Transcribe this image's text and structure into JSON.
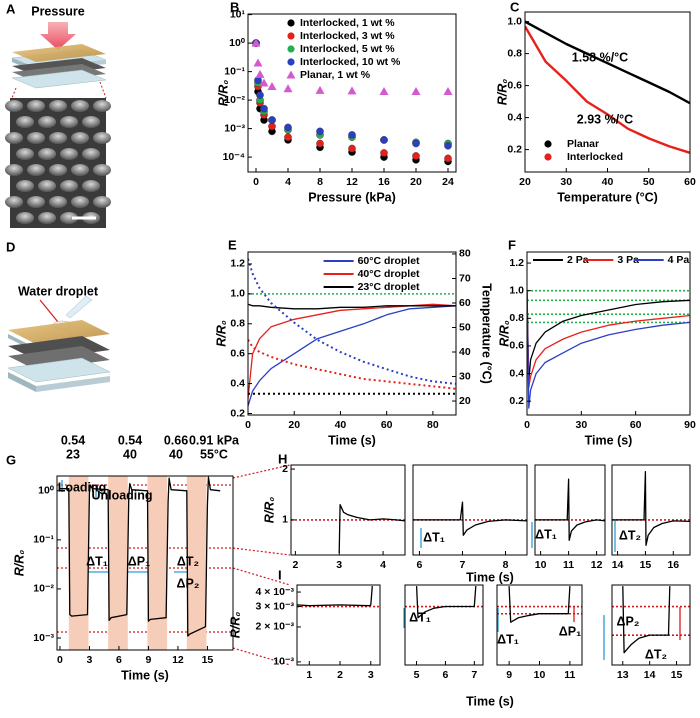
{
  "panels": {
    "A": {
      "label": "A",
      "text": "Pressure"
    },
    "D": {
      "label": "D",
      "text": "Water droplet"
    }
  },
  "chart_data": [
    {
      "panel": "B",
      "type": "scatter",
      "ylog": true,
      "xlabel": "Pressure (kPa)",
      "ylabel": "R/R₀",
      "xlim": [
        -1,
        25
      ],
      "xticks": [
        0,
        4,
        8,
        12,
        16,
        20,
        24
      ],
      "ylim": [
        3e-05,
        10.5
      ],
      "yticks": [
        {
          "value": 0.0001,
          "label": "10⁻⁴"
        },
        {
          "value": 0.001,
          "label": "10⁻³"
        },
        {
          "value": 0.01,
          "label": "10⁻²"
        },
        {
          "value": 0.1,
          "label": "10⁻¹"
        },
        {
          "value": 1,
          "label": "10⁰"
        },
        {
          "value": 10,
          "label": "10¹"
        }
      ],
      "legend": "upper right",
      "x": [
        0,
        0.25,
        0.5,
        1,
        2,
        4,
        8,
        12,
        16,
        20,
        24
      ],
      "series": [
        {
          "name": "Interlocked, 1 wt %",
          "color": "#000000",
          "marker": "circle",
          "values": [
            1,
            0.02,
            0.005,
            0.002,
            0.0008,
            0.0004,
            0.00022,
            0.00015,
            0.0001,
            8e-05,
            7e-05
          ]
        },
        {
          "name": "Interlocked, 3 wt %",
          "color": "#e8201c",
          "marker": "circle",
          "values": [
            1,
            0.03,
            0.008,
            0.003,
            0.0012,
            0.0005,
            0.0003,
            0.0002,
            0.00014,
            0.00011,
            9e-05
          ]
        },
        {
          "name": "Interlocked, 5 wt %",
          "color": "#22b14c",
          "marker": "circle",
          "values": [
            1,
            0.04,
            0.01,
            0.004,
            0.002,
            0.0009,
            0.0006,
            0.0005,
            0.0004,
            0.00033,
            0.0003
          ]
        },
        {
          "name": "Interlocked, 10 wt %",
          "color": "#2b3fc4",
          "marker": "circle",
          "values": [
            1,
            0.05,
            0.015,
            0.005,
            0.002,
            0.0011,
            0.0008,
            0.0006,
            0.0004,
            0.0003,
            0.00025
          ]
        },
        {
          "name": "Planar, 1 wt %",
          "color": "#d45ad0",
          "marker": "triangle",
          "values": [
            1,
            0.2,
            0.08,
            0.04,
            0.03,
            0.025,
            0.022,
            0.021,
            0.02,
            0.02,
            0.02
          ]
        }
      ]
    },
    {
      "panel": "C",
      "type": "line",
      "xlabel": "Temperature (°C)",
      "ylabel": "R/R₀",
      "xlim": [
        20,
        60
      ],
      "xticks": [
        20,
        30,
        40,
        50,
        60
      ],
      "ylim": [
        0.06,
        1.06
      ],
      "yticks": [
        0.2,
        0.4,
        0.6,
        0.8,
        {
          "value": 1,
          "label": "1.0"
        }
      ],
      "legend": "lower left",
      "x": [
        20,
        25,
        30,
        35,
        40,
        45,
        50,
        55,
        60
      ],
      "series": [
        {
          "name": "Planar",
          "color": "#000000",
          "marker": "circle",
          "values": [
            1.0,
            0.93,
            0.86,
            0.8,
            0.74,
            0.68,
            0.62,
            0.56,
            0.49
          ]
        },
        {
          "name": "Interlocked",
          "color": "#e8201c",
          "marker": "circle",
          "values": [
            0.97,
            0.75,
            0.63,
            0.5,
            0.42,
            0.33,
            0.27,
            0.22,
            0.18
          ]
        }
      ],
      "annotations": [
        {
          "text": "1.58 %/°C",
          "color": "#000000"
        },
        {
          "text": "2.93 %/°C",
          "color": "#e8201c"
        }
      ]
    },
    {
      "panel": "E",
      "type": "line",
      "xlabel": "Time (s)",
      "ylabel": "R/R₀",
      "y2label": "Temperature (°C)",
      "xlim": [
        0,
        90
      ],
      "xticks": [
        0,
        20,
        40,
        60,
        80
      ],
      "ylim": [
        0.19,
        1.28
      ],
      "yticks": [
        0.2,
        0.4,
        0.6,
        0.8,
        {
          "value": 1,
          "label": "1.0"
        },
        1.2
      ],
      "y2lim": [
        14.3,
        80.8
      ],
      "y2ticks": [
        20,
        30,
        40,
        50,
        60,
        70,
        80
      ],
      "legend": "upper right",
      "ref_lines": [
        1.0
      ],
      "ref_color": "#22b14c",
      "x": [
        0,
        2,
        5,
        10,
        20,
        30,
        40,
        50,
        60,
        70,
        80,
        90
      ],
      "series": [
        {
          "name": "60°C droplet",
          "color": "#2b3fc4",
          "values": [
            0.25,
            0.35,
            0.42,
            0.5,
            0.6,
            0.7,
            0.75,
            0.8,
            0.86,
            0.9,
            0.91,
            0.92
          ]
        },
        {
          "name": "40°C droplet",
          "color": "#e8201c",
          "values": [
            0.3,
            0.6,
            0.7,
            0.78,
            0.83,
            0.86,
            0.89,
            0.9,
            0.91,
            0.92,
            0.93,
            0.92
          ]
        },
        {
          "name": "23°C droplet",
          "color": "#000000",
          "values": [
            0.93,
            0.92,
            0.92,
            0.91,
            0.9,
            0.9,
            0.91,
            0.91,
            0.92,
            0.92,
            0.92,
            0.92
          ]
        },
        {
          "color": "#2b3fc4",
          "axis": "y2",
          "style": "dotted",
          "values": [
            78,
            72,
            66,
            60,
            52,
            45,
            40,
            36,
            33,
            30,
            28,
            27
          ]
        },
        {
          "color": "#e8201c",
          "axis": "y2",
          "style": "dotted",
          "values": [
            45,
            42,
            40,
            38,
            35,
            33,
            31,
            29,
            28,
            27,
            26,
            25
          ]
        },
        {
          "color": "#000000",
          "axis": "y2",
          "style": "dotted",
          "values": [
            23,
            23,
            23,
            23,
            23,
            23,
            23,
            23,
            23,
            23,
            23,
            23
          ]
        }
      ]
    },
    {
      "panel": "F",
      "type": "line",
      "xlabel": "Time (s)",
      "ylabel": "R/R₀",
      "xlim": [
        0,
        90
      ],
      "xticks": [
        0,
        30,
        60,
        90
      ],
      "ylim": [
        0.1,
        1.28
      ],
      "yticks": [
        0.2,
        0.4,
        0.6,
        0.8,
        {
          "value": 1,
          "label": "1.0"
        },
        1.2
      ],
      "legend": "top",
      "ref_lines": [
        1.0,
        0.93,
        0.83,
        0.77
      ],
      "ref_color": "#22b14c",
      "x": [
        0,
        1,
        2,
        5,
        10,
        20,
        30,
        45,
        60,
        75,
        90
      ],
      "series": [
        {
          "name": "2 Pa",
          "color": "#000000",
          "values": [
            1.0,
            0.35,
            0.5,
            0.62,
            0.7,
            0.78,
            0.82,
            0.86,
            0.9,
            0.92,
            0.93
          ]
        },
        {
          "name": "3 Pa",
          "color": "#e8201c",
          "values": [
            0.95,
            0.3,
            0.38,
            0.5,
            0.58,
            0.65,
            0.7,
            0.75,
            0.78,
            0.8,
            0.82
          ]
        },
        {
          "name": "4 Pa",
          "color": "#2b3fc4",
          "values": [
            1.0,
            0.15,
            0.28,
            0.4,
            0.48,
            0.55,
            0.62,
            0.68,
            0.72,
            0.75,
            0.77
          ]
        }
      ]
    },
    {
      "panel": "G",
      "type": "line",
      "ylog": true,
      "xlabel": "Time (s)",
      "ylabel": "R/R₀",
      "xlim": [
        -0.3,
        17.6
      ],
      "xticks": [
        0,
        3,
        6,
        9,
        12,
        15
      ],
      "ylim": [
        0.00057,
        2.0
      ],
      "yticks": [
        {
          "value": 0.001,
          "label": "10⁻³"
        },
        {
          "value": 0.01,
          "label": "10⁻²"
        },
        {
          "value": 0.1,
          "label": "10⁻¹"
        },
        {
          "value": 1,
          "label": "10⁰"
        }
      ],
      "shaded": [
        [
          0.9,
          2.9
        ],
        [
          4.9,
          6.9
        ],
        [
          8.9,
          10.9
        ],
        [
          12.9,
          14.9
        ]
      ],
      "shade_color": "#f6cdb8",
      "x": [
        0,
        0.9,
        1.0,
        1.2,
        2.8,
        3.0,
        3.1,
        3.3,
        4.9,
        5.0,
        5.2,
        6.8,
        7.0,
        7.1,
        7.3,
        8.9,
        9.0,
        9.2,
        10.8,
        11.0,
        11.1,
        11.3,
        12.9,
        13.0,
        13.2,
        14.8,
        15.0,
        15.1,
        15.3,
        16.3
      ],
      "series": [
        {
          "color": "#000000",
          "values": [
            1.1,
            1.1,
            0.003,
            0.0028,
            0.003,
            0.9,
            1.3,
            1.1,
            1.05,
            0.0023,
            0.0026,
            0.003,
            0.8,
            1.4,
            1.05,
            1.0,
            0.0022,
            0.0024,
            0.0026,
            0.6,
            1.8,
            1.05,
            1.0,
            0.0011,
            0.0012,
            0.0017,
            0.5,
            1.9,
            1.05,
            1.0
          ]
        }
      ],
      "annotations": [
        {
          "text": "0.54",
          "color": "#2a9fd6"
        },
        {
          "text": "23",
          "color": "#2a9fd6"
        },
        {
          "text": "0.54",
          "color": "#2a9fd6"
        },
        {
          "text": "40",
          "color": "#2a9fd6"
        },
        {
          "text": "0.66",
          "color": "#2a9fd6"
        },
        {
          "text": "40",
          "color": "#2a9fd6"
        },
        {
          "text": "0.91 kPa",
          "color": "#2a9fd6"
        },
        {
          "text": "55°C",
          "color": "#2a9fd6"
        },
        {
          "text": "Loading",
          "color": "#2a9fd6"
        },
        {
          "text": "Unloading",
          "color": "#2a9fd6"
        },
        {
          "text": "ΔT₁",
          "color": "#2a9fd6"
        },
        {
          "text": "ΔP₁",
          "color": "#2a9fd6"
        },
        {
          "text": "ΔT₂",
          "color": "#2a9fd6"
        },
        {
          "text": "ΔP₂",
          "color": "#2a9fd6"
        }
      ]
    },
    {
      "panel": "H",
      "type": "line",
      "xlabel": "Time (s)",
      "ylabel": "R/R₀",
      "xlim": [
        1.9,
        4.5
      ],
      "xticks": [
        2,
        3,
        4
      ],
      "ylim": [
        0.31,
        2.08
      ],
      "yticks": [
        1,
        2
      ],
      "ref_lines": [
        1.0
      ],
      "ref_color": "#d7191c",
      "x": [
        3.0,
        3.02,
        3.1,
        3.2,
        3.4,
        3.7,
        4.0,
        4.3,
        4.5
      ],
      "series": [
        {
          "color": "#000000",
          "values": [
            0.35,
            1.3,
            1.15,
            1.1,
            1.05,
            1.0,
            1.02,
            1.0,
            0.98
          ]
        }
      ]
    },
    {
      "type": "line",
      "xlim": [
        5.85,
        8.5
      ],
      "xticks": [
        6,
        7,
        8
      ],
      "ylim": [
        0.31,
        2.08
      ],
      "ref_lines": [
        1.0
      ],
      "ref_color": "#d7191c",
      "x": [
        5.85,
        6.5,
        6.95,
        7.0,
        7.02,
        7.1,
        7.3,
        7.6,
        8.0,
        8.5
      ],
      "series": [
        {
          "color": "#000000",
          "values": [
            1.0,
            1.0,
            1.0,
            1.35,
            0.7,
            0.8,
            0.9,
            0.97,
            1.0,
            0.98
          ]
        }
      ],
      "annotations": [
        {
          "text": "ΔT₁",
          "color": "#2a9fd6"
        }
      ]
    },
    {
      "type": "line",
      "xlim": [
        9.8,
        12.3
      ],
      "xticks": [
        10,
        11,
        12
      ],
      "ylim": [
        0.31,
        2.08
      ],
      "ref_lines": [
        1.0
      ],
      "ref_color": "#d7191c",
      "x": [
        9.8,
        10.5,
        10.95,
        11.0,
        11.02,
        11.1,
        11.3,
        11.6,
        12.0,
        12.3
      ],
      "series": [
        {
          "color": "#000000",
          "values": [
            1.0,
            1.0,
            1.0,
            1.8,
            0.6,
            0.78,
            0.9,
            0.96,
            1.0,
            0.98
          ]
        }
      ],
      "annotations": [
        {
          "text": "ΔT₁",
          "color": "#2a9fd6"
        }
      ]
    },
    {
      "type": "line",
      "xlim": [
        13.8,
        16.6
      ],
      "xticks": [
        14,
        15,
        16
      ],
      "ylim": [
        0.31,
        2.08
      ],
      "ref_lines": [
        1.0
      ],
      "ref_color": "#d7191c",
      "x": [
        13.8,
        14.5,
        14.95,
        15.0,
        15.02,
        15.1,
        15.3,
        15.6,
        16.0,
        16.6
      ],
      "series": [
        {
          "color": "#000000",
          "values": [
            1.0,
            1.0,
            1.0,
            1.95,
            0.5,
            0.7,
            0.85,
            0.93,
            0.98,
            0.97
          ]
        }
      ],
      "annotations": [
        {
          "text": "ΔT₂",
          "color": "#2a9fd6"
        }
      ]
    },
    {
      "panel": "I",
      "type": "line",
      "ylog": true,
      "xlabel": "Time (s)",
      "ylabel": "R/R₀",
      "xlim": [
        0.6,
        3.3
      ],
      "xticks": [
        1,
        2,
        3
      ],
      "ylim": [
        0.00094,
        0.0046
      ],
      "yticks": [
        {
          "value": 0.001,
          "label": "10⁻³"
        },
        {
          "value": 0.002,
          "label": "2 × 10⁻³"
        },
        {
          "value": 0.003,
          "label": "3 × 10⁻³"
        },
        {
          "value": 0.004,
          "label": "4 × 10⁻³"
        }
      ],
      "ref_lines": [
        0.003
      ],
      "ref_color": "#d7191c",
      "x": [
        0.6,
        1,
        2,
        2.95,
        3.0,
        3.05
      ],
      "series": [
        {
          "color": "#000000",
          "values": [
            0.0031,
            0.00305,
            0.0031,
            0.00305,
            0.0031,
            0.0045
          ]
        }
      ]
    },
    {
      "type": "line",
      "ylog": true,
      "xlim": [
        4.6,
        7.3
      ],
      "xticks": [
        5,
        6,
        7
      ],
      "ylim": [
        0.00094,
        0.0046
      ],
      "ref_lines": [
        0.003
      ],
      "ref_color": "#d7191c",
      "x": [
        5.0,
        5.05,
        5.3,
        5.6,
        6.0,
        6.5,
        7.0,
        7.05
      ],
      "series": [
        {
          "color": "#000000",
          "values": [
            0.0045,
            0.0024,
            0.0027,
            0.0029,
            0.003,
            0.003,
            0.003,
            0.0045
          ]
        }
      ],
      "annotations": [
        {
          "text": "ΔT₁",
          "color": "#2a9fd6"
        }
      ]
    },
    {
      "type": "line",
      "ylog": true,
      "xlim": [
        8.6,
        11.4
      ],
      "xticks": [
        9,
        10,
        11
      ],
      "ylim": [
        0.00094,
        0.0046
      ],
      "ref_lines": [
        0.003,
        0.0026
      ],
      "ref_color": "#d7191c",
      "x": [
        9.0,
        9.05,
        9.3,
        9.6,
        10.0,
        10.5,
        10.95,
        11.0
      ],
      "series": [
        {
          "color": "#000000",
          "values": [
            0.0045,
            0.0022,
            0.0024,
            0.0025,
            0.0026,
            0.0026,
            0.0026,
            0.0045
          ]
        }
      ],
      "annotations": [
        {
          "text": "ΔT₁",
          "color": "#2a9fd6"
        },
        {
          "text": "ΔP₁",
          "color": "#d7191c"
        }
      ]
    },
    {
      "type": "line",
      "ylog": true,
      "xlim": [
        12.6,
        15.5
      ],
      "xticks": [
        13,
        14,
        15
      ],
      "ylim": [
        0.00094,
        0.0046
      ],
      "ref_lines": [
        0.003,
        0.0017
      ],
      "ref_color": "#d7191c",
      "x": [
        13.0,
        13.05,
        13.3,
        13.6,
        14.0,
        14.4,
        14.7,
        14.75
      ],
      "series": [
        {
          "color": "#000000",
          "values": [
            0.0045,
            0.0012,
            0.0014,
            0.0016,
            0.0017,
            0.0017,
            0.0017,
            0.0045
          ]
        }
      ],
      "annotations": [
        {
          "text": "ΔP₂",
          "color": "#d7191c"
        },
        {
          "text": "ΔT₂",
          "color": "#2a9fd6"
        }
      ]
    }
  ]
}
